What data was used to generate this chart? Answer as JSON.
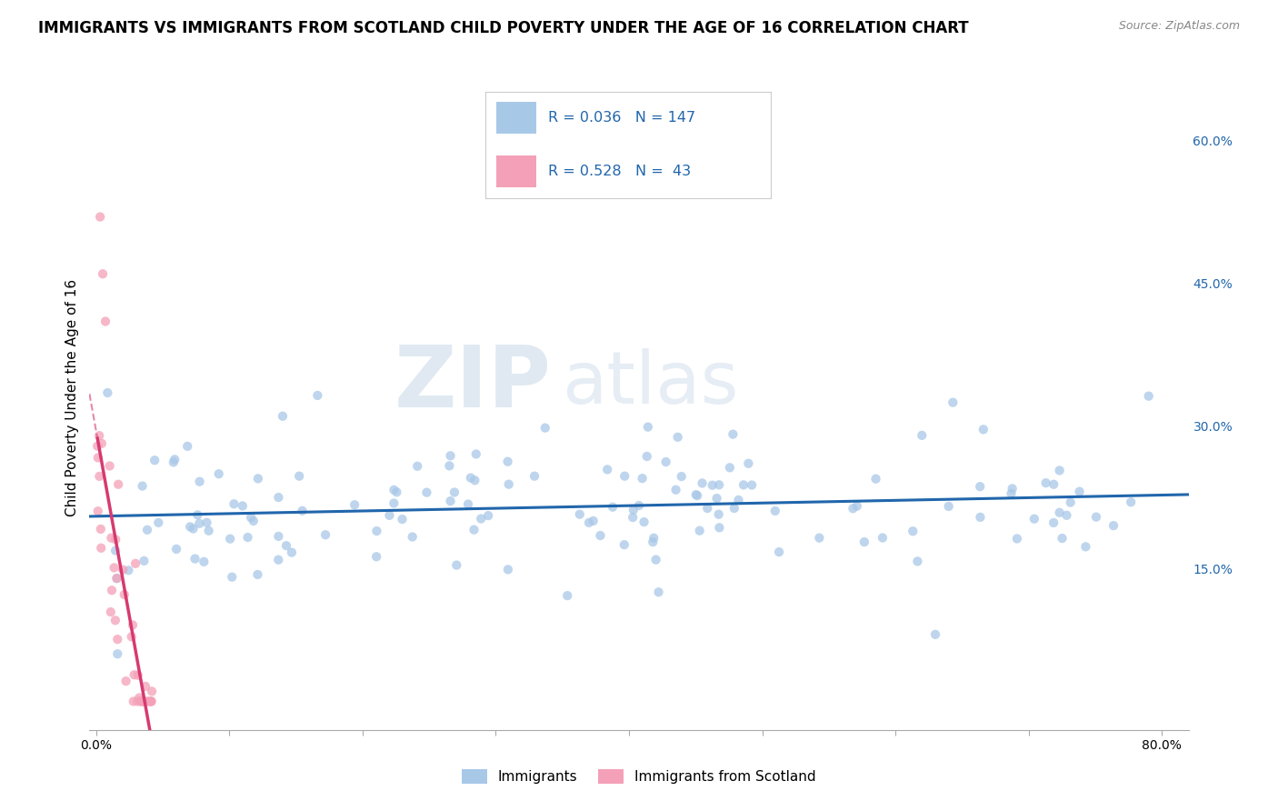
{
  "title": "IMMIGRANTS VS IMMIGRANTS FROM SCOTLAND CHILD POVERTY UNDER THE AGE OF 16 CORRELATION CHART",
  "source": "Source: ZipAtlas.com",
  "ylabel": "Child Poverty Under the Age of 16",
  "xlim": [
    -0.005,
    0.82
  ],
  "ylim": [
    -0.02,
    0.68
  ],
  "xticks": [
    0.0,
    0.1,
    0.2,
    0.3,
    0.4,
    0.5,
    0.6,
    0.7,
    0.8
  ],
  "xticklabels": [
    "0.0%",
    "",
    "",
    "",
    "",
    "",
    "",
    "",
    "80.0%"
  ],
  "yticks_right": [
    0.15,
    0.3,
    0.45,
    0.6
  ],
  "ytick_labels_right": [
    "15.0%",
    "30.0%",
    "45.0%",
    "60.0%"
  ],
  "blue_color": "#a8c8e8",
  "pink_color": "#f4a0b8",
  "blue_line_color": "#2166ac",
  "pink_line_color": "#d63a70",
  "R_blue": 0.036,
  "N_blue": 147,
  "R_pink": 0.528,
  "N_pink": 43,
  "watermark_zip": "ZIP",
  "watermark_atlas": "atlas",
  "legend_label_blue": "Immigrants",
  "legend_label_pink": "Immigrants from Scotland",
  "title_fontsize": 12,
  "axis_label_fontsize": 11,
  "tick_fontsize": 10,
  "background_color": "#ffffff",
  "grid_color": "#d0d0d0",
  "legend_border_color": "#cccccc"
}
